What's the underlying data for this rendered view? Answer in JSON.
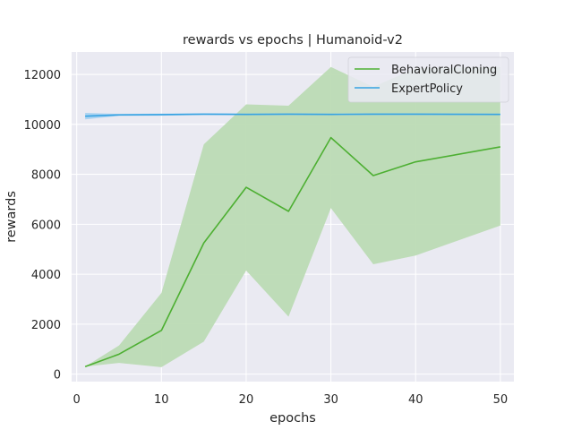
{
  "chart_data": {
    "type": "line",
    "title": "rewards vs epochs | Humanoid-v2",
    "xlabel": "epochs",
    "ylabel": "rewards",
    "xlim": [
      -0.6,
      51.6
    ],
    "ylim": [
      -300,
      12900
    ],
    "xticks": [
      0,
      10,
      20,
      30,
      40,
      50
    ],
    "yticks": [
      0,
      2000,
      4000,
      6000,
      8000,
      10000,
      12000
    ],
    "grid": true,
    "legend_position": "top-right",
    "background": "#eaeaf2",
    "series": [
      {
        "name": "BehavioralCloning",
        "color": "#4daf32",
        "band_color": "#bcdbb4",
        "x": [
          1,
          5,
          10,
          15,
          20,
          25,
          30,
          35,
          40,
          50
        ],
        "y": [
          300,
          800,
          1750,
          5250,
          7480,
          6520,
          9470,
          7950,
          8500,
          9100
        ],
        "lower": [
          300,
          450,
          280,
          1300,
          4150,
          2300,
          6650,
          4400,
          4750,
          5950
        ],
        "upper": [
          300,
          1150,
          3250,
          9200,
          10800,
          10750,
          12300,
          11500,
          12250,
          12300
        ]
      },
      {
        "name": "ExpertPolicy",
        "color": "#36a2e2",
        "band_color": "#a6d2f0",
        "x": [
          1,
          5,
          10,
          15,
          20,
          25,
          30,
          35,
          40,
          50
        ],
        "y": [
          10330,
          10380,
          10390,
          10410,
          10400,
          10410,
          10400,
          10410,
          10410,
          10400
        ],
        "lower": [
          10200,
          10340,
          10350,
          10380,
          10370,
          10380,
          10370,
          10380,
          10380,
          10370
        ],
        "upper": [
          10460,
          10420,
          10430,
          10440,
          10430,
          10440,
          10430,
          10440,
          10440,
          10430
        ]
      }
    ]
  }
}
